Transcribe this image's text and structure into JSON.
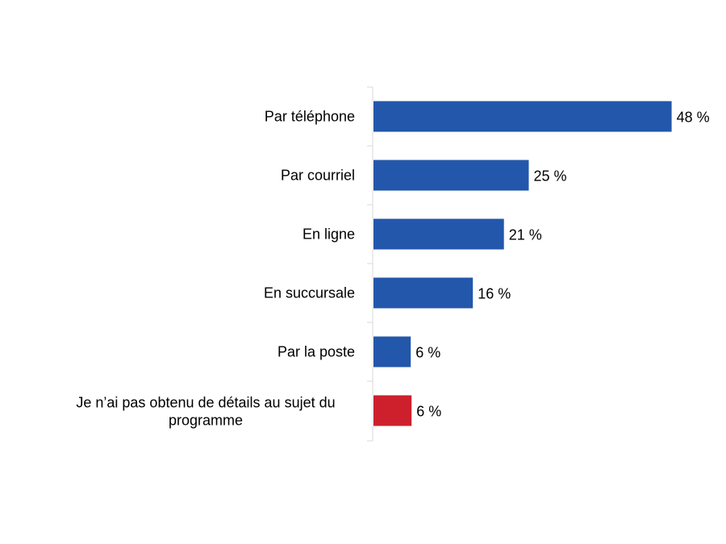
{
  "chart_data": {
    "type": "bar",
    "orientation": "horizontal",
    "title": "",
    "xlabel": "",
    "ylabel": "",
    "xlim": [
      0,
      50
    ],
    "grid": false,
    "value_suffix": " %",
    "categories": [
      [
        "Par téléphone"
      ],
      [
        "Par courriel"
      ],
      [
        "En ligne"
      ],
      [
        "En succursale"
      ],
      [
        "Par la poste"
      ],
      [
        "Je n’ai pas obtenu de détails au sujet du",
        "programme"
      ]
    ],
    "values": [
      48,
      25,
      21,
      16,
      6,
      6
    ],
    "value_labels": [
      "48 %",
      "25 %",
      "21 %",
      "16 %",
      "6 %",
      "6 %"
    ],
    "colors": [
      "#2357AB",
      "#2357AB",
      "#2357AB",
      "#2357AB",
      "#2357AB",
      "#CD202C"
    ]
  }
}
